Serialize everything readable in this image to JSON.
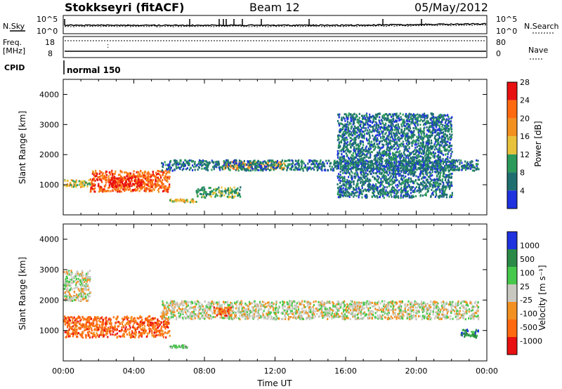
{
  "header": {
    "station": "Stokkseyri (fitACF)",
    "beam": "Beam 12",
    "date": "05/May/2012"
  },
  "noise_panel": {
    "left_label": "N.Sky",
    "right_label": "N.Search",
    "left_ticks": [
      "10^5",
      "10^0"
    ],
    "right_ticks": [
      "10^5",
      "10^0"
    ]
  },
  "freq_panel": {
    "left_label_1": "Freq.",
    "left_label_2": "[MHz]",
    "right_label": "Nave",
    "left_ticks": [
      "18",
      "8"
    ],
    "right_ticks": [
      "80",
      "0"
    ]
  },
  "cpid": {
    "label": "CPID",
    "mode": "normal 150"
  },
  "colors": {
    "power_scale": [
      "#1f32e0",
      "#1f6f70",
      "#2c9a5a",
      "#e8c23a",
      "#f29020",
      "#ff6a10",
      "#e81010"
    ],
    "velocity_scale": [
      "#e81010",
      "#ff6a10",
      "#f29020",
      "#c8c8c0",
      "#46c84a",
      "#2a8a46",
      "#1f32e0"
    ]
  },
  "chart_data": [
    {
      "type": "heatmap",
      "name": "power",
      "ylabel": "Slant Range [km]",
      "xlabel": "",
      "x_ticks": [
        "00:00",
        "04:00",
        "08:00",
        "12:00",
        "16:00",
        "20:00",
        "00:00"
      ],
      "y_ticks": [
        "1000",
        "2000",
        "3000",
        "4000"
      ],
      "ylim": [
        0,
        4500
      ],
      "xlim_hours": [
        0,
        24
      ],
      "colorbar_label": "Power [dB]",
      "colorbar_ticks": [
        "4",
        "8",
        "12",
        "16",
        "20",
        "24",
        "28"
      ],
      "features": [
        {
          "t0": 1.5,
          "t1": 6.0,
          "r0": 800,
          "r1": 1500,
          "level": 5
        },
        {
          "t0": 2.5,
          "t1": 4.5,
          "r0": 950,
          "r1": 1300,
          "level": 6
        },
        {
          "t0": 9.0,
          "t1": 12.5,
          "r0": 1550,
          "r1": 1800,
          "level": 4
        },
        {
          "t0": 5.5,
          "t1": 23.5,
          "r0": 1500,
          "r1": 1850,
          "level": 1
        },
        {
          "t0": 7.5,
          "t1": 10.0,
          "r0": 600,
          "r1": 950,
          "level": 2
        },
        {
          "t0": 6.0,
          "t1": 7.5,
          "r0": 450,
          "r1": 550,
          "level": 3
        },
        {
          "t0": 0.0,
          "t1": 1.5,
          "r0": 950,
          "r1": 1200,
          "level": 3
        },
        {
          "t0": 15.5,
          "t1": 22.0,
          "r0": 600,
          "r1": 3400,
          "level": 1
        }
      ]
    },
    {
      "type": "heatmap",
      "name": "velocity",
      "ylabel": "Slant Range [km]",
      "xlabel": "Time UT",
      "x_ticks": [
        "00:00",
        "04:00",
        "08:00",
        "12:00",
        "16:00",
        "20:00",
        "00:00"
      ],
      "y_ticks": [
        "1000",
        "2000",
        "3000",
        "4000"
      ],
      "ylim": [
        0,
        4500
      ],
      "xlim_hours": [
        0,
        24
      ],
      "colorbar_label": "Velocity [m s⁻¹]",
      "colorbar_ticks": [
        "1000",
        "500",
        "100",
        "25",
        "-25",
        "-100",
        "-500",
        "-1000"
      ],
      "features": [
        {
          "t0": 0.0,
          "t1": 6.0,
          "r0": 800,
          "r1": 1500,
          "level": 1
        },
        {
          "t0": 5.5,
          "t1": 23.5,
          "r0": 1400,
          "r1": 2000,
          "level": 3
        },
        {
          "t0": 0.0,
          "t1": 1.5,
          "r0": 2000,
          "r1": 3000,
          "level": 3
        },
        {
          "t0": 6.0,
          "t1": 7.0,
          "r0": 450,
          "r1": 550,
          "level": 4
        },
        {
          "t0": 8.5,
          "t1": 9.5,
          "r0": 1500,
          "r1": 1800,
          "level": 1
        },
        {
          "t0": 22.5,
          "t1": 23.5,
          "r0": 800,
          "r1": 1100,
          "level": 5
        }
      ]
    }
  ]
}
